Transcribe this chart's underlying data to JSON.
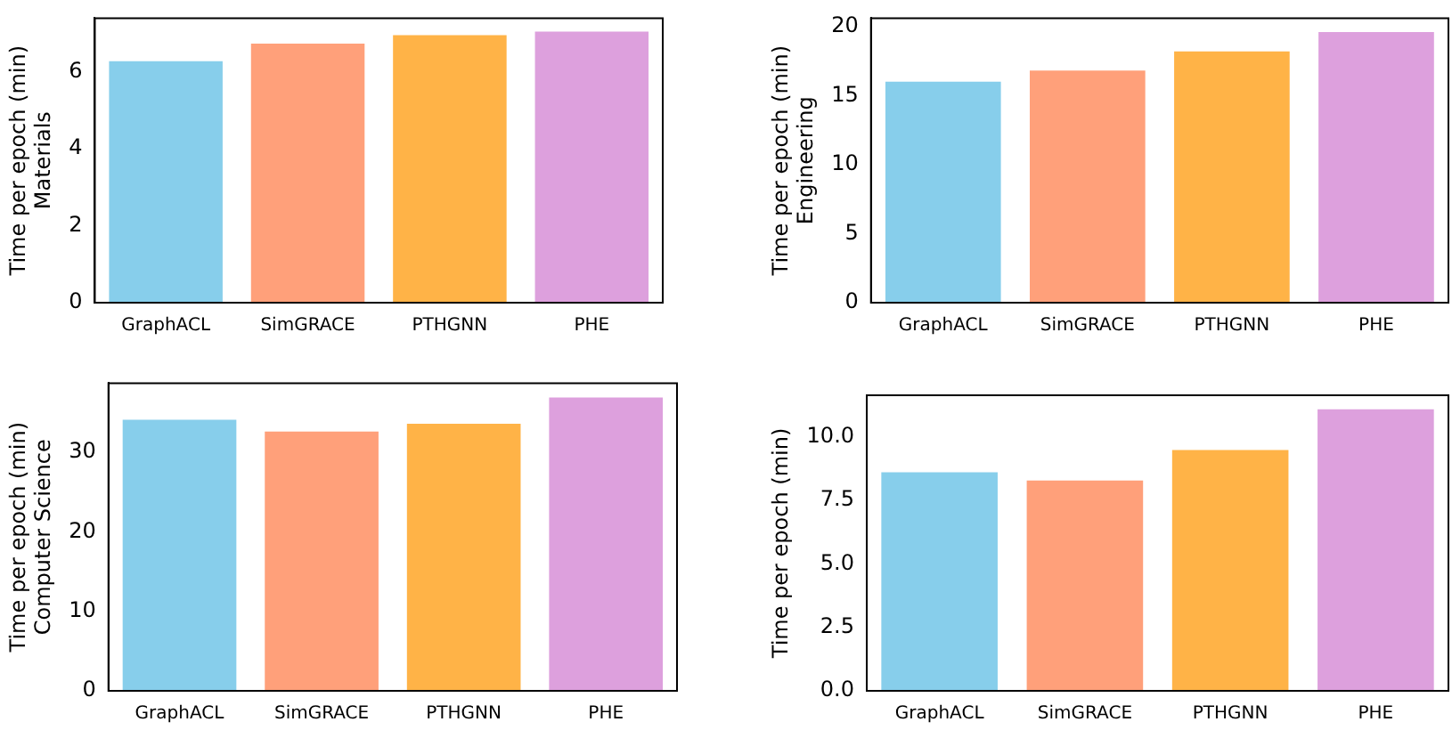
{
  "chart_data": [
    {
      "type": "bar",
      "ylabel": "Time per epoch (min)\nMaterials",
      "categories": [
        "GraphACL",
        "SimGRACE",
        "PTHGNN",
        "PHE"
      ],
      "values": [
        6.27,
        6.73,
        6.95,
        7.04
      ],
      "colors": [
        "#87ceeb",
        "#ffa07a",
        "#ffb347",
        "#dda0dd"
      ],
      "ylim": [
        0,
        7.39
      ],
      "yticks": [
        0,
        2,
        4,
        6
      ],
      "grid": false
    },
    {
      "type": "bar",
      "ylabel": "Time per epoch (min)\nEngineering",
      "categories": [
        "GraphACL",
        "SimGRACE",
        "PTHGNN",
        "PHE"
      ],
      "values": [
        16.0,
        16.8,
        18.2,
        19.6
      ],
      "colors": [
        "#87ceeb",
        "#ffa07a",
        "#ffb347",
        "#dda0dd"
      ],
      "ylim": [
        0,
        20.6
      ],
      "yticks": [
        0,
        5,
        10,
        15,
        20
      ],
      "grid": false
    },
    {
      "type": "bar",
      "ylabel": "Time per epoch (min)\nComputer Science",
      "categories": [
        "GraphACL",
        "SimGRACE",
        "PTHGNN",
        "PHE"
      ],
      "values": [
        34.1,
        32.6,
        33.6,
        36.9
      ],
      "colors": [
        "#87ceeb",
        "#ffa07a",
        "#ffb347",
        "#dda0dd"
      ],
      "ylim": [
        0,
        38.7
      ],
      "yticks": [
        0,
        10,
        20,
        30
      ],
      "grid": false
    },
    {
      "type": "bar",
      "ylabel": "Time per epoch (min)",
      "categories": [
        "GraphACL",
        "SimGRACE",
        "PTHGNN",
        "PHE"
      ],
      "values": [
        8.6,
        8.28,
        9.48,
        11.08
      ],
      "colors": [
        "#87ceeb",
        "#ffa07a",
        "#ffb347",
        "#dda0dd"
      ],
      "ylim": [
        0,
        11.63
      ],
      "yticks": [
        {
          "value": 0,
          "label": "0.0"
        },
        {
          "value": 2.5,
          "label": "2.5"
        },
        {
          "value": 5,
          "label": "5.0"
        },
        {
          "value": 7.5,
          "label": "7.5"
        },
        {
          "value": 10,
          "label": "10.0"
        }
      ],
      "grid": false
    }
  ]
}
